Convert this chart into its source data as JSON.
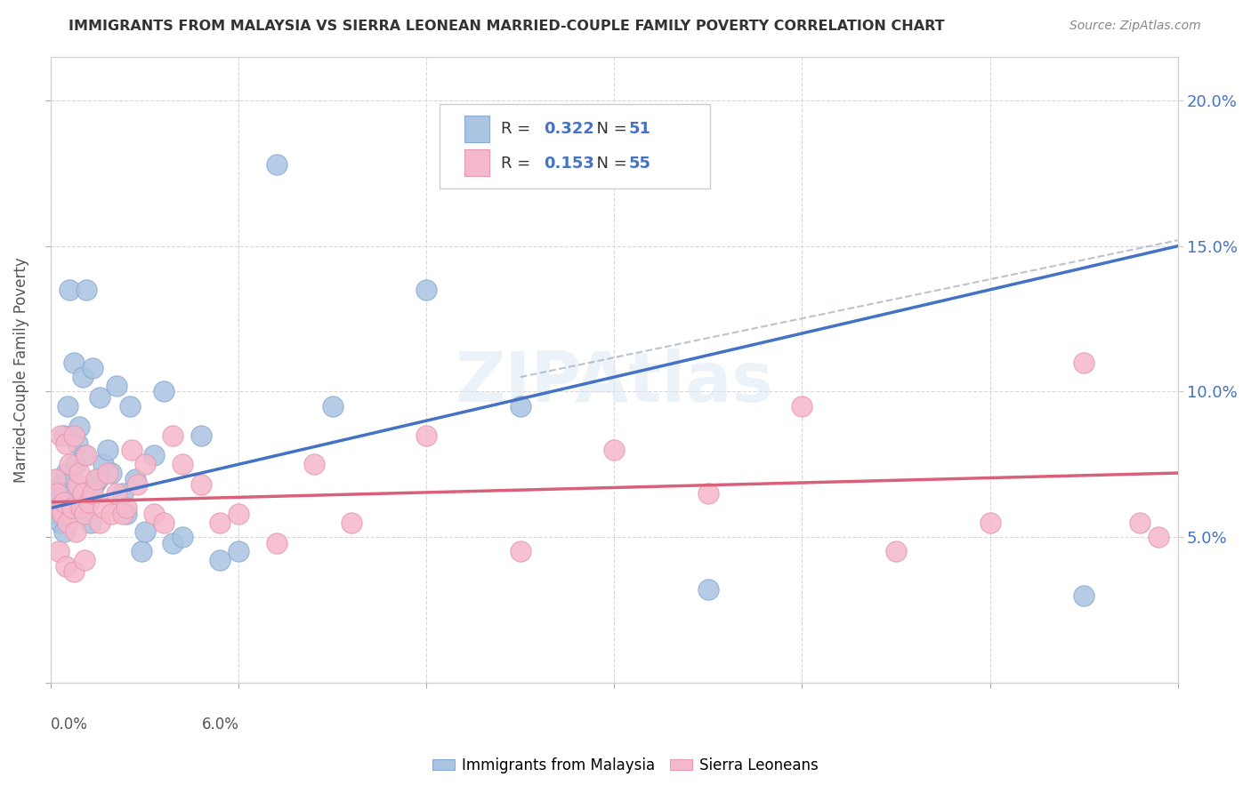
{
  "title": "IMMIGRANTS FROM MALAYSIA VS SIERRA LEONEAN MARRIED-COUPLE FAMILY POVERTY CORRELATION CHART",
  "source": "Source: ZipAtlas.com",
  "ylabel": "Married-Couple Family Poverty",
  "legend1_label": "Immigrants from Malaysia",
  "legend2_label": "Sierra Leoneans",
  "R1": 0.322,
  "N1": 51,
  "R2": 0.153,
  "N2": 55,
  "color_blue": "#aac4e2",
  "color_pink": "#f5b8cb",
  "line_blue": "#4472c4",
  "line_pink": "#d9607a",
  "xlim": [
    0.0,
    6.0
  ],
  "ylim": [
    0.0,
    21.5
  ],
  "blue_scatter_x": [
    0.02,
    0.03,
    0.04,
    0.05,
    0.05,
    0.06,
    0.07,
    0.07,
    0.08,
    0.09,
    0.1,
    0.1,
    0.11,
    0.12,
    0.12,
    0.13,
    0.14,
    0.15,
    0.16,
    0.17,
    0.18,
    0.19,
    0.2,
    0.21,
    0.22,
    0.23,
    0.25,
    0.26,
    0.28,
    0.3,
    0.32,
    0.35,
    0.38,
    0.4,
    0.42,
    0.45,
    0.48,
    0.5,
    0.55,
    0.6,
    0.65,
    0.7,
    0.8,
    0.9,
    1.0,
    1.2,
    1.5,
    2.0,
    2.5,
    3.5,
    5.5
  ],
  "blue_scatter_y": [
    6.2,
    5.8,
    7.0,
    6.5,
    5.5,
    6.8,
    8.5,
    5.2,
    7.2,
    9.5,
    6.0,
    13.5,
    5.8,
    6.5,
    11.0,
    7.5,
    8.2,
    8.8,
    6.2,
    10.5,
    7.8,
    13.5,
    6.3,
    5.5,
    10.8,
    6.8,
    7.0,
    9.8,
    7.5,
    8.0,
    7.2,
    10.2,
    6.5,
    5.8,
    9.5,
    7.0,
    4.5,
    5.2,
    7.8,
    10.0,
    4.8,
    5.0,
    8.5,
    4.2,
    4.5,
    17.8,
    9.5,
    13.5,
    9.5,
    3.2,
    3.0
  ],
  "pink_scatter_x": [
    0.02,
    0.03,
    0.04,
    0.05,
    0.06,
    0.07,
    0.08,
    0.09,
    0.1,
    0.11,
    0.12,
    0.13,
    0.14,
    0.15,
    0.16,
    0.17,
    0.18,
    0.19,
    0.2,
    0.22,
    0.24,
    0.26,
    0.28,
    0.3,
    0.32,
    0.35,
    0.38,
    0.4,
    0.43,
    0.46,
    0.5,
    0.55,
    0.6,
    0.65,
    0.7,
    0.8,
    0.9,
    1.0,
    1.2,
    1.4,
    1.6,
    2.0,
    2.5,
    3.0,
    3.5,
    4.0,
    4.5,
    5.0,
    5.5,
    5.8,
    5.9,
    0.04,
    0.08,
    0.12,
    0.18
  ],
  "pink_scatter_y": [
    7.0,
    6.5,
    6.0,
    8.5,
    5.8,
    6.2,
    8.2,
    5.5,
    7.5,
    6.0,
    8.5,
    5.2,
    6.8,
    7.2,
    6.0,
    6.5,
    5.8,
    7.8,
    6.2,
    6.5,
    7.0,
    5.5,
    6.0,
    7.2,
    5.8,
    6.5,
    5.8,
    6.0,
    8.0,
    6.8,
    7.5,
    5.8,
    5.5,
    8.5,
    7.5,
    6.8,
    5.5,
    5.8,
    4.8,
    7.5,
    5.5,
    8.5,
    4.5,
    8.0,
    6.5,
    9.5,
    4.5,
    5.5,
    11.0,
    5.5,
    5.0,
    4.5,
    4.0,
    3.8,
    4.2
  ],
  "blue_line_x0": 0.0,
  "blue_line_y0": 6.0,
  "blue_line_x1": 6.0,
  "blue_line_y1": 15.0,
  "pink_line_x0": 0.0,
  "pink_line_y0": 6.2,
  "pink_line_x1": 6.0,
  "pink_line_y1": 7.2,
  "dash_line_x0": 2.5,
  "dash_line_y0": 10.5,
  "dash_line_x1": 6.0,
  "dash_line_y1": 15.2,
  "yticks": [
    5.0,
    10.0,
    15.0,
    20.0
  ],
  "xtick_labels": [
    "0.0%",
    "",
    "",
    "",
    "",
    "",
    "6.0%"
  ],
  "xtick_positions": [
    0,
    1,
    2,
    3,
    4,
    5,
    6
  ]
}
